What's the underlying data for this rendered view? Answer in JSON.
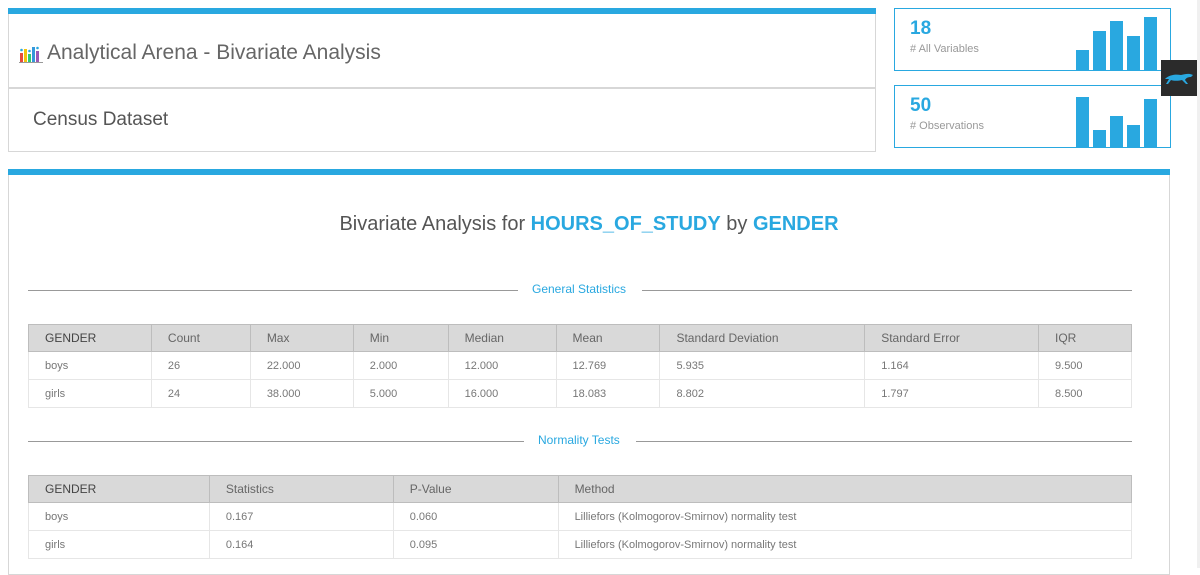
{
  "header": {
    "app_title": "Analytical Arena - Bivariate Analysis",
    "dataset_name": "Census Dataset",
    "icon": "bar-chart-icon"
  },
  "kpis": [
    {
      "value": "18",
      "label": "# All Variables",
      "bars": [
        0.35,
        0.7,
        0.88,
        0.6,
        0.95
      ]
    },
    {
      "value": "50",
      "label": "# Observations",
      "bars": [
        0.9,
        0.3,
        0.55,
        0.4,
        0.85
      ]
    }
  ],
  "widget": {
    "icon": "panther-icon"
  },
  "analysis": {
    "title_prefix": "Bivariate Analysis for",
    "variable": "HOURS_OF_STUDY",
    "by": "by",
    "group": "GENDER"
  },
  "general_stats": {
    "section_label": "General Statistics",
    "columns": [
      "GENDER",
      "Count",
      "Max",
      "Min",
      "Median",
      "Mean",
      "Standard Deviation",
      "Standard Error",
      "IQR"
    ],
    "rows": [
      [
        "boys",
        "26",
        "22.000",
        "2.000",
        "12.000",
        "12.769",
        "5.935",
        "1.164",
        "9.500"
      ],
      [
        "girls",
        "24",
        "38.000",
        "5.000",
        "16.000",
        "18.083",
        "8.802",
        "1.797",
        "8.500"
      ]
    ]
  },
  "normality": {
    "section_label": "Normality Tests",
    "columns": [
      "GENDER",
      "Statistics",
      "P-Value",
      "Method"
    ],
    "rows": [
      [
        "boys",
        "0.167",
        "0.060",
        "Lilliefors (Kolmogorov-Smirnov) normality test"
      ],
      [
        "girls",
        "0.164",
        "0.095",
        "Lilliefors (Kolmogorov-Smirnov) normality test"
      ]
    ]
  },
  "colors": {
    "accent": "#29a8e0",
    "header_bg": "#d9d9d9"
  }
}
